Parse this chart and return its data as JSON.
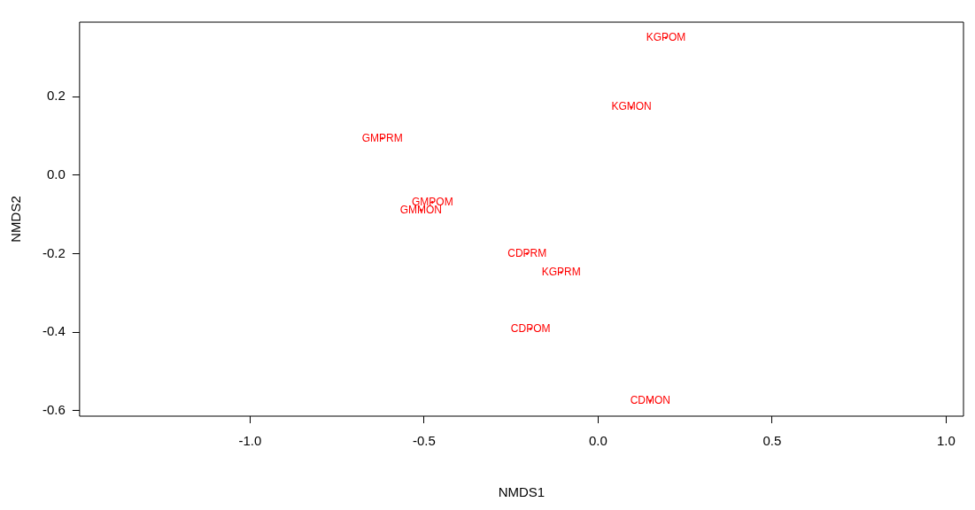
{
  "chart_data": {
    "type": "scatter",
    "xlabel": "NMDS1",
    "ylabel": "NMDS2",
    "grid": false,
    "legend": false,
    "xlim": [
      -1.49,
      1.05
    ],
    "ylim": [
      -0.614,
      0.39
    ],
    "xticks": [
      {
        "value": -1,
        "label": "-1.0"
      },
      {
        "value": -0.5,
        "label": "-0.5"
      },
      {
        "value": 0,
        "label": "0.0"
      },
      {
        "value": 0.5,
        "label": "0.5"
      },
      {
        "value": 1,
        "label": "1.0"
      }
    ],
    "yticks": [
      {
        "value": -0.6,
        "label": "-0.6"
      },
      {
        "value": -0.4,
        "label": "-0.4"
      },
      {
        "value": -0.2,
        "label": "-0.2"
      },
      {
        "value": 0,
        "label": "0.0"
      },
      {
        "value": 0.2,
        "label": "0.2"
      }
    ],
    "series": [
      {
        "color": "#ff0000",
        "x": [
          -0.106,
          -0.194,
          -0.204,
          0.15,
          -0.62,
          -0.476,
          -0.509,
          0.195,
          0.096
        ],
        "values": [
          -0.248,
          -0.392,
          -0.2,
          -0.575,
          0.094,
          -0.069,
          -0.089,
          0.35,
          0.173
        ],
        "value_labels": [
          "KGPRM",
          "CDPOM",
          "CDPRM",
          "CDMON",
          "GMPRM",
          "GMPOM",
          "GMMON",
          "KGPOM",
          "KGMON"
        ]
      }
    ]
  }
}
